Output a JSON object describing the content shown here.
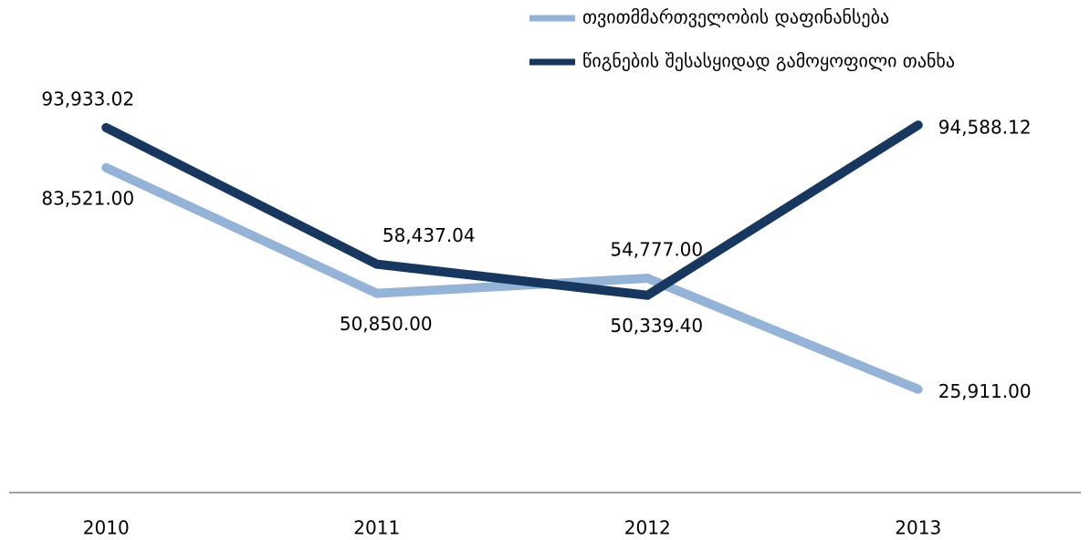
{
  "chart_data": {
    "type": "line",
    "categories": [
      "2010",
      "2011",
      "2012",
      "2013"
    ],
    "series": [
      {
        "name": "თვითმმართველობის დაფინანსება",
        "color": "#95b3d7",
        "values": [
          83521,
          50850,
          54777,
          25911
        ],
        "value_labels": [
          "83,521.00",
          "50,850.00",
          "54,777.00",
          "25,911.00"
        ]
      },
      {
        "name": "წიგნების შესასყიდად გამოყოფილი თანხა",
        "color": "#17375e",
        "values": [
          93933.02,
          58437.04,
          50339.4,
          94588.12
        ],
        "value_labels": [
          "93,933.02",
          "58,437.04",
          "50,339.40",
          "94,588.12"
        ]
      }
    ],
    "ylim": [
      0,
      120000
    ],
    "legend": "top-right"
  }
}
